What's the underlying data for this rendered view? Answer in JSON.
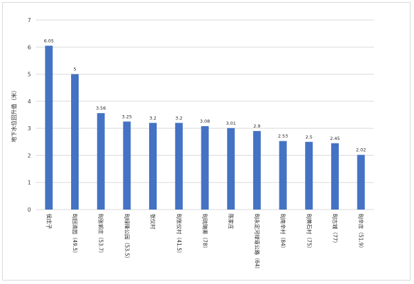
{
  "chart_data": {
    "type": "bar",
    "title": "",
    "xlabel": "",
    "ylabel": "地下水位回升值（米）",
    "ylim": [
      0,
      7
    ],
    "yticks": [
      0,
      1,
      2,
      3,
      4,
      5,
      6,
      7
    ],
    "grid": true,
    "legend": "none",
    "bar_color": "#4472c4",
    "categories": [
      "侯庄子",
      "BJ回清园（49.5）",
      "BJ张郭庄（53.7）",
      "BJ绿隆公园（53.5）",
      "张仪村",
      "BJ张仪村（41.5）",
      "BJ琉璃渠（78）",
      "陈家庄",
      "BJ永定河绿道公路（64）",
      "BJ南辛村（84）",
      "BJ黄石村（75）",
      "BJ古城（77）",
      "BJ辛庄（51.9）"
    ],
    "values": [
      6.05,
      5,
      3.56,
      3.25,
      3.2,
      3.2,
      3.08,
      3.01,
      2.9,
      2.53,
      2.5,
      2.45,
      2.02
    ],
    "value_labels": [
      "6.05",
      "5",
      "3.56",
      "3.25",
      "3.2",
      "3.2",
      "3.08",
      "3.01",
      "2.9",
      "2.53",
      "2.5",
      "2.45",
      "2.02"
    ]
  }
}
